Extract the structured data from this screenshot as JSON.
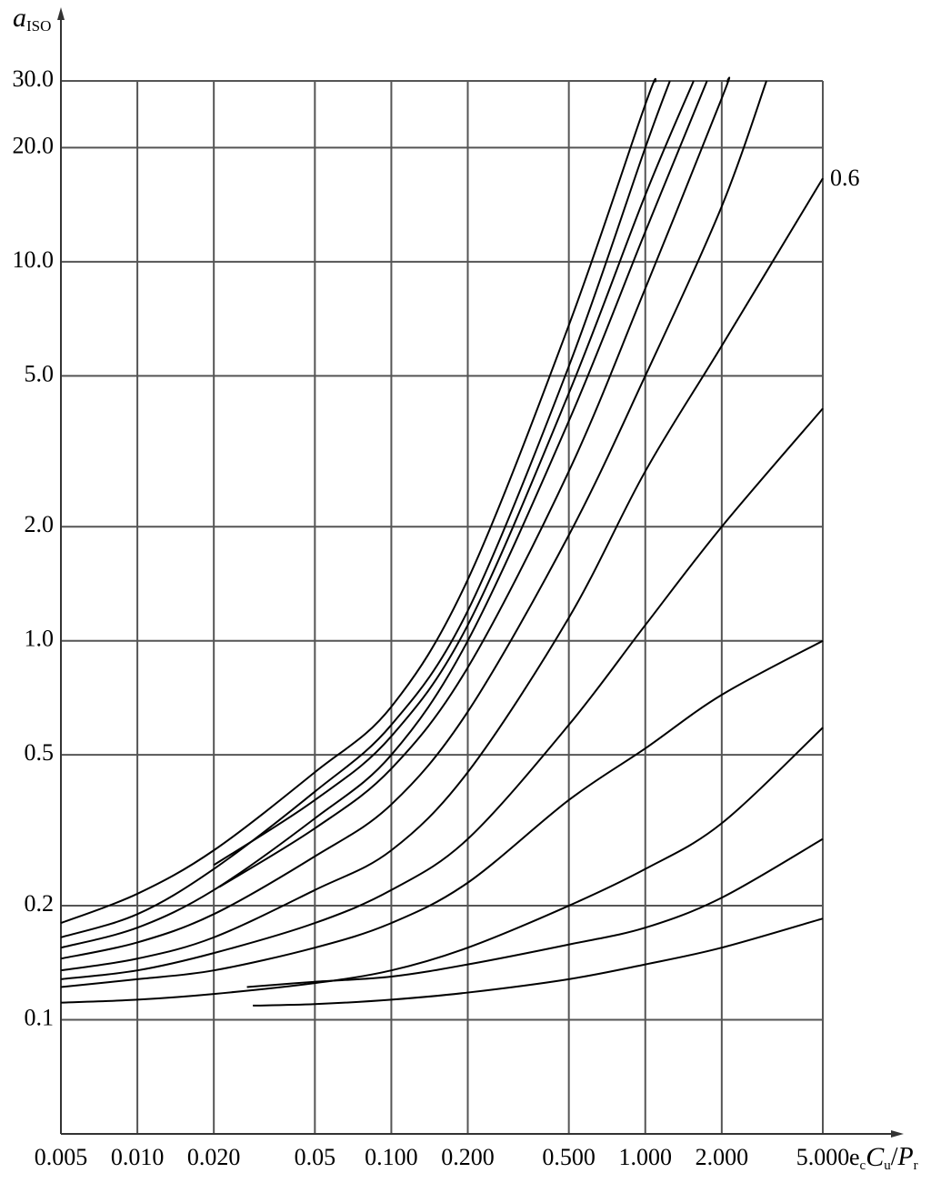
{
  "chart_data": {
    "type": "line",
    "ylabel": {
      "symbol": "a",
      "subscript": "ISO"
    },
    "xlabel": [
      "e",
      "c",
      "C",
      "u",
      "/",
      "P",
      "r"
    ],
    "log_x": true,
    "log_y": true,
    "grid": true,
    "xlim": [
      0.005,
      5
    ],
    "ylim": [
      0.05,
      30
    ],
    "xticks": [
      0.005,
      {
        "value": 0.01,
        "label": "0.010"
      },
      {
        "value": 0.02,
        "label": "0.020"
      },
      0.05,
      {
        "value": 0.1,
        "label": "0.100"
      },
      {
        "value": 0.2,
        "label": "0.200"
      },
      {
        "value": 0.5,
        "label": "0.500"
      },
      {
        "value": 1,
        "label": "1.000"
      },
      {
        "value": 2,
        "label": "2.000"
      },
      {
        "value": 5,
        "label": "5.000"
      }
    ],
    "yticks": [
      0.1,
      0.2,
      0.5,
      {
        "value": 1,
        "label": "1.0"
      },
      {
        "value": 2,
        "label": "2.0"
      },
      {
        "value": 5,
        "label": "5.0"
      },
      {
        "value": 10,
        "label": "10.0"
      },
      {
        "value": 20,
        "label": "20.0"
      },
      {
        "value": 30,
        "label": "30.0"
      }
    ],
    "series": [
      {
        "color": "#000000",
        "x": [
          0.005,
          0.01,
          0.02,
          0.05,
          0.1,
          0.2,
          0.5,
          1,
          1.1
        ],
        "values": [
          0.18,
          0.215,
          0.28,
          0.45,
          0.67,
          1.45,
          6.8,
          26,
          30
        ]
      },
      {
        "color": "#000000",
        "x": [
          0.005,
          0.01,
          0.02,
          0.05,
          0.1,
          0.2,
          0.5,
          1,
          1.25
        ],
        "values": [
          0.165,
          0.19,
          0.25,
          0.4,
          0.6,
          1.2,
          5.3,
          20,
          30
        ]
      },
      {
        "color": "#000000",
        "x": [
          0.02,
          0.05,
          0.1,
          0.2,
          0.5,
          1,
          1.55
        ],
        "values": [
          0.256,
          0.38,
          0.56,
          1.1,
          4.5,
          15,
          30
        ]
      },
      {
        "color": "#000000",
        "x": [
          0.005,
          0.01,
          0.02,
          0.05,
          0.1,
          0.2,
          0.5,
          1,
          1.75
        ],
        "values": [
          0.155,
          0.175,
          0.22,
          0.34,
          0.5,
          1.0,
          3.8,
          12,
          30
        ]
      },
      {
        "color": "#000000",
        "x": [
          0.021,
          0.05,
          0.1,
          0.2,
          0.5,
          1,
          2,
          2.1
        ],
        "values": [
          0.224,
          0.32,
          0.46,
          0.85,
          2.8,
          8.5,
          27,
          30
        ]
      },
      {
        "color": "#000000",
        "x": [
          0.005,
          0.01,
          0.02,
          0.05,
          0.1,
          0.2,
          0.5,
          1,
          2,
          3
        ],
        "values": [
          0.145,
          0.16,
          0.19,
          0.27,
          0.37,
          0.65,
          1.9,
          5,
          14,
          30
        ]
      },
      {
        "color": "#000000",
        "label": "0.6",
        "x": [
          0.005,
          0.01,
          0.02,
          0.05,
          0.1,
          0.2,
          0.5,
          1,
          2,
          5
        ],
        "values": [
          0.135,
          0.145,
          0.165,
          0.22,
          0.28,
          0.45,
          1.15,
          2.8,
          6,
          16.6
        ]
      },
      {
        "color": "#000000",
        "x": [
          0.005,
          0.01,
          0.02,
          0.05,
          0.1,
          0.2,
          0.5,
          1,
          2,
          5
        ],
        "values": [
          0.128,
          0.135,
          0.15,
          0.18,
          0.22,
          0.3,
          0.6,
          1.1,
          2.0,
          4.1
        ]
      },
      {
        "color": "#000000",
        "x": [
          0.005,
          0.01,
          0.02,
          0.05,
          0.1,
          0.2,
          0.5,
          1,
          2,
          5
        ],
        "values": [
          0.122,
          0.128,
          0.135,
          0.155,
          0.18,
          0.23,
          0.38,
          0.52,
          0.72,
          1.0
        ]
      },
      {
        "color": "#000000",
        "x": [
          0.005,
          0.01,
          0.02,
          0.05,
          0.1,
          0.2,
          0.5,
          1,
          2,
          5
        ],
        "values": [
          0.111,
          0.113,
          0.117,
          0.125,
          0.135,
          0.155,
          0.2,
          0.25,
          0.33,
          0.59
        ]
      },
      {
        "color": "#000000",
        "x": [
          0.027,
          0.05,
          0.1,
          0.2,
          0.5,
          1,
          2,
          5
        ],
        "values": [
          0.122,
          0.126,
          0.13,
          0.14,
          0.158,
          0.175,
          0.21,
          0.3
        ]
      },
      {
        "color": "#000000",
        "x": [
          0.0285,
          0.05,
          0.1,
          0.2,
          0.5,
          1,
          2,
          5
        ],
        "values": [
          0.109,
          0.11,
          0.113,
          0.118,
          0.128,
          0.14,
          0.155,
          0.185
        ]
      }
    ]
  }
}
